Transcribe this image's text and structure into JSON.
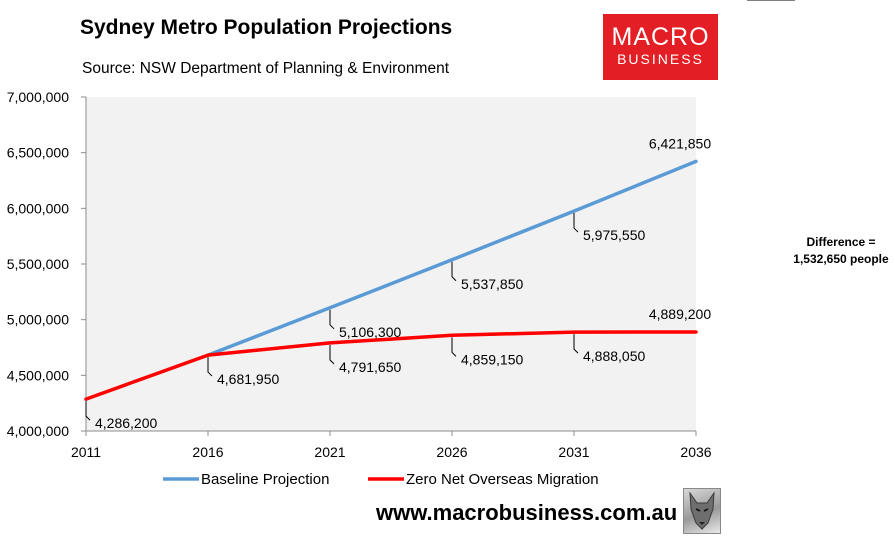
{
  "header": {
    "title": "Sydney Metro Population Projections",
    "subtitle": "Source: NSW Department of Planning & Environment"
  },
  "logo": {
    "line1": "MACRO",
    "line2": "BUSINESS",
    "color": "#e31e24"
  },
  "footer": {
    "website": "www.macrobusiness.com.au",
    "icon": "wolf-icon"
  },
  "chart_data": {
    "type": "line",
    "x": [
      2011,
      2016,
      2021,
      2026,
      2031,
      2036
    ],
    "x_tick_labels": [
      "2011",
      "2016",
      "2021",
      "2026",
      "2031",
      "2036"
    ],
    "ylim": [
      4000000,
      7000000
    ],
    "y_ticks": [
      4000000,
      4500000,
      5000000,
      5500000,
      6000000,
      6500000,
      7000000
    ],
    "y_tick_labels": [
      "4,000,000",
      "4,500,000",
      "5,000,000",
      "5,500,000",
      "6,000,000",
      "6,500,000",
      "7,000,000"
    ],
    "grid": false,
    "plot_background": "#f2f2f2",
    "legend_position": "bottom",
    "series": [
      {
        "name": "Baseline Projection",
        "color": "#5b9bd5",
        "x": [
          2016,
          2021,
          2026,
          2031,
          2036
        ],
        "values": [
          4681950,
          5106300,
          5537850,
          5975550,
          6421850
        ],
        "labels": [
          "",
          "5,106,300",
          "5,537,850",
          "5,975,550",
          "6,421,850"
        ]
      },
      {
        "name": "Zero Net Overseas Migration",
        "color": "#ff0000",
        "x": [
          2011,
          2016,
          2021,
          2026,
          2031,
          2036
        ],
        "values": [
          4286200,
          4681950,
          4791650,
          4859150,
          4888050,
          4889200
        ],
        "labels": [
          "4,286,200",
          "4,681,950",
          "4,791,650",
          "4,859,150",
          "4,888,050",
          "4,889,200"
        ]
      }
    ],
    "annotation": {
      "line1": "Difference =",
      "line2": "1,532,650 people"
    }
  }
}
